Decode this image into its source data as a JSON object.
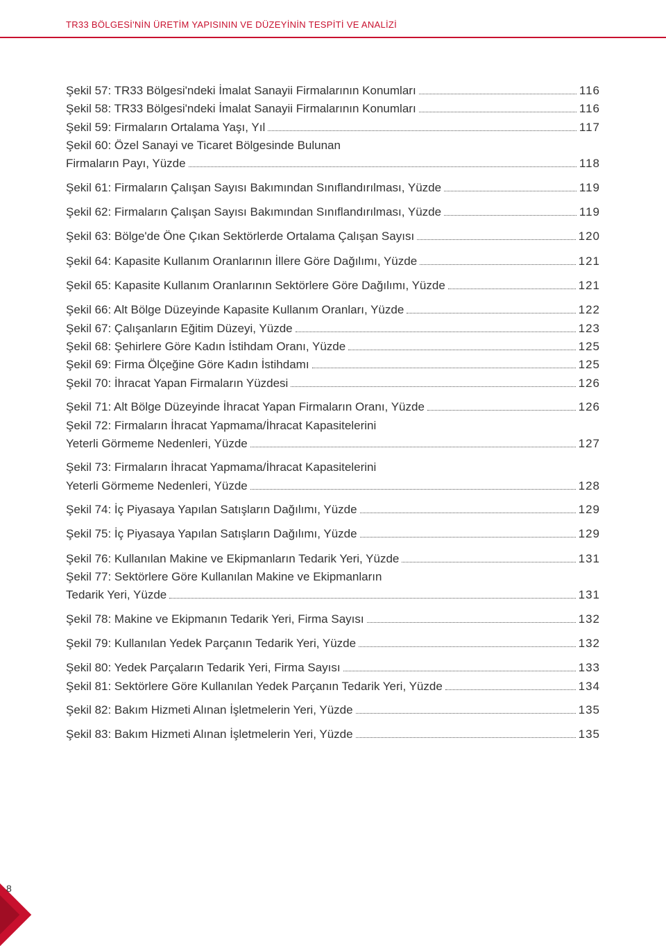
{
  "colors": {
    "accent": "#c8102e",
    "accent_dark": "#a00d24",
    "text": "#333333",
    "background": "#ffffff",
    "leader": "#555555"
  },
  "typography": {
    "body_fontsize_pt": 13,
    "header_fontsize_pt": 10,
    "body_weight": 300
  },
  "header": {
    "title": "TR33 BÖLGESİ'NİN ÜRETİM YAPISININ VE DÜZEYİNİN TESPİTİ VE ANALİZİ"
  },
  "footer": {
    "page_number": "8"
  },
  "toc": [
    {
      "group": "tight",
      "lines": [
        {
          "label": "Şekil 57: TR33 Bölgesi'ndeki İmalat Sanayii Firmalarının Konumları",
          "page": "116"
        },
        {
          "label": "Şekil 58: TR33 Bölgesi'ndeki İmalat Sanayii Firmalarının Konumları",
          "page": "116"
        },
        {
          "label": "Şekil 59: Firmaların Ortalama Yaşı, Yıl",
          "page": "117"
        },
        {
          "pre": "Şekil 60: Özel Sanayi ve Ticaret Bölgesinde Bulunan",
          "label": "Firmaların Payı, Yüzde",
          "page": "118"
        }
      ]
    },
    {
      "group": "single",
      "lines": [
        {
          "label": "Şekil 61: Firmaların Çalışan Sayısı Bakımından Sınıflandırılması, Yüzde",
          "page": "119"
        }
      ]
    },
    {
      "group": "single",
      "lines": [
        {
          "label": "Şekil 62: Firmaların Çalışan Sayısı Bakımından Sınıflandırılması, Yüzde",
          "page": "119"
        }
      ]
    },
    {
      "group": "single",
      "lines": [
        {
          "label": "Şekil 63: Bölge'de Öne Çıkan Sektörlerde Ortalama Çalışan Sayısı",
          "page": "120"
        }
      ]
    },
    {
      "group": "single",
      "lines": [
        {
          "label": "Şekil 64: Kapasite Kullanım Oranlarının İllere Göre Dağılımı, Yüzde",
          "page": "121"
        }
      ]
    },
    {
      "group": "single",
      "lines": [
        {
          "label": "Şekil 65: Kapasite Kullanım Oranlarının Sektörlere Göre Dağılımı, Yüzde",
          "page": "121"
        }
      ]
    },
    {
      "group": "tight",
      "lines": [
        {
          "label": "Şekil 66: Alt Bölge Düzeyinde Kapasite Kullanım Oranları, Yüzde",
          "page": "122"
        },
        {
          "label": "Şekil 67: Çalışanların Eğitim Düzeyi, Yüzde",
          "page": "123"
        },
        {
          "label": "Şekil 68: Şehirlere Göre Kadın İstihdam Oranı, Yüzde",
          "page": "125"
        },
        {
          "label": "Şekil 69: Firma Ölçeğine Göre Kadın İstihdamı",
          "page": "125"
        },
        {
          "label": "Şekil 70: İhracat Yapan Firmaların Yüzdesi",
          "page": "126"
        }
      ]
    },
    {
      "group": "tight",
      "lines": [
        {
          "label": "Şekil 71: Alt Bölge Düzeyinde İhracat Yapan Firmaların Oranı, Yüzde",
          "page": "126"
        },
        {
          "pre": "Şekil 72: Firmaların İhracat Yapmama/İhracat Kapasitelerini",
          "label": "Yeterli Görmeme Nedenleri, Yüzde",
          "page": "127"
        }
      ]
    },
    {
      "group": "tight",
      "lines": [
        {
          "pre": "Şekil 73: Firmaların İhracat Yapmama/İhracat Kapasitelerini",
          "label": "Yeterli Görmeme Nedenleri, Yüzde",
          "page": "128"
        }
      ]
    },
    {
      "group": "single",
      "lines": [
        {
          "label": "Şekil 74: İç Piyasaya Yapılan Satışların Dağılımı, Yüzde",
          "page": "129"
        }
      ]
    },
    {
      "group": "single",
      "lines": [
        {
          "label": "Şekil 75: İç Piyasaya Yapılan Satışların Dağılımı, Yüzde",
          "page": "129"
        }
      ]
    },
    {
      "group": "tight",
      "lines": [
        {
          "label": "Şekil 76: Kullanılan Makine ve Ekipmanların Tedarik Yeri, Yüzde",
          "page": "131"
        },
        {
          "pre": "Şekil 77: Sektörlere Göre Kullanılan Makine ve Ekipmanların",
          "label": "Tedarik Yeri, Yüzde",
          "page": "131"
        }
      ]
    },
    {
      "group": "single",
      "lines": [
        {
          "label": "Şekil 78: Makine ve Ekipmanın Tedarik Yeri, Firma Sayısı",
          "page": "132"
        }
      ]
    },
    {
      "group": "single",
      "lines": [
        {
          "label": "Şekil 79: Kullanılan Yedek Parçanın Tedarik Yeri, Yüzde",
          "page": "132"
        }
      ]
    },
    {
      "group": "tight",
      "lines": [
        {
          "label": "Şekil 80: Yedek Parçaların Tedarik Yeri, Firma Sayısı",
          "page": "133"
        },
        {
          "label": "Şekil 81: Sektörlere Göre Kullanılan Yedek Parçanın Tedarik Yeri, Yüzde",
          "page": "134"
        }
      ]
    },
    {
      "group": "single",
      "lines": [
        {
          "label": "Şekil 82: Bakım Hizmeti Alınan İşletmelerin Yeri, Yüzde",
          "page": "135"
        }
      ]
    },
    {
      "group": "single",
      "lines": [
        {
          "label": "Şekil 83: Bakım Hizmeti Alınan İşletmelerin Yeri, Yüzde",
          "page": "135"
        }
      ]
    }
  ]
}
